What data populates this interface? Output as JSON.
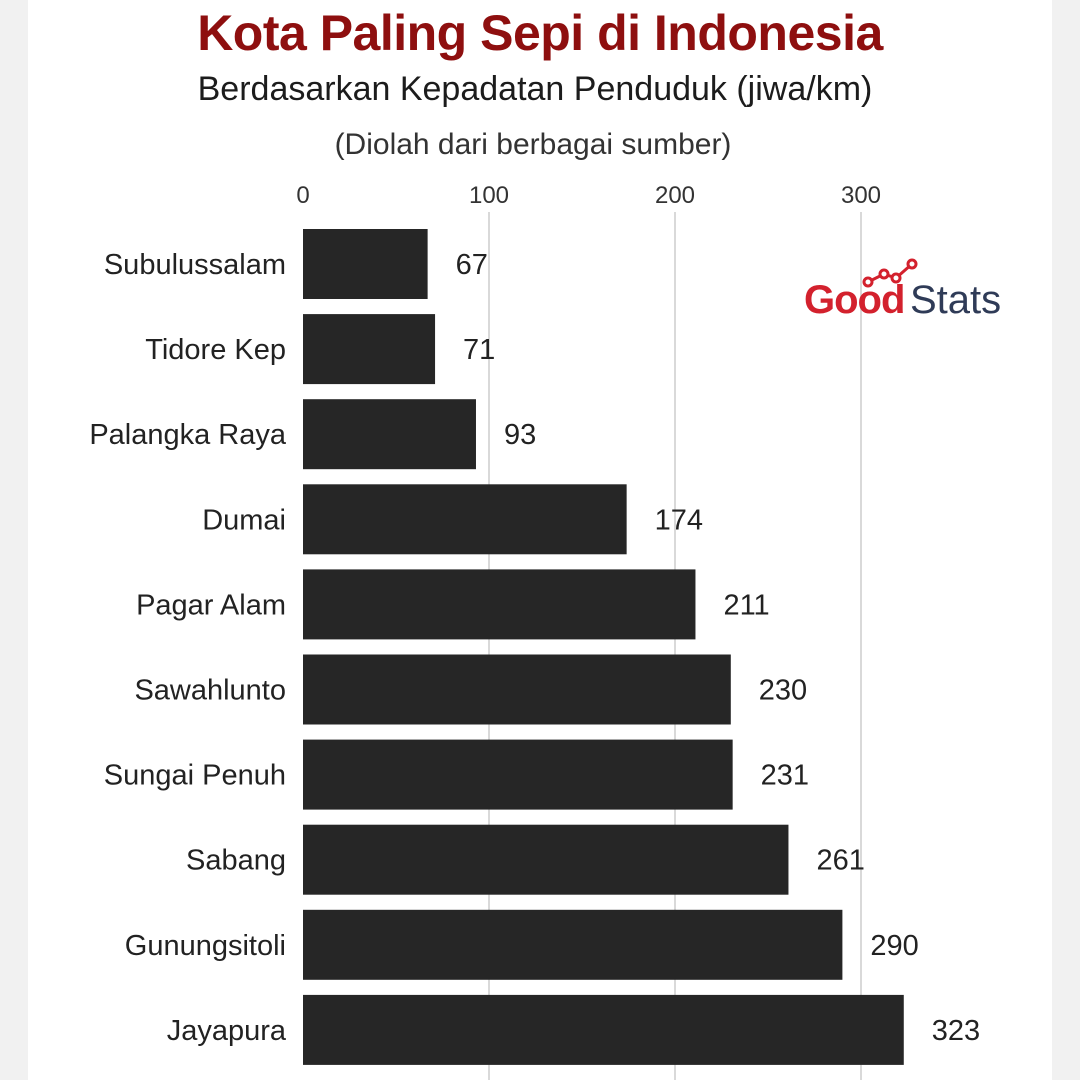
{
  "header": {
    "title": "Kota Paling Sepi di Indonesia",
    "subtitle": "Berdasarkan Kepadatan Penduduk (jiwa/km)",
    "source": "(Diolah dari berbagai sumber)"
  },
  "logo": {
    "part1": "Good",
    "part2": "Stats",
    "graph_icon": "rising-line-chart-icon"
  },
  "colors": {
    "bar": "#262626",
    "title": "#8e0f0f",
    "grid": "#d9d9d9",
    "logo_red": "#d3212d",
    "logo_navy": "#2f3b57"
  },
  "chart_data": {
    "type": "bar",
    "orientation": "horizontal",
    "categories": [
      "Subulussalam",
      "Tidore Kep",
      "Palangka Raya",
      "Dumai",
      "Pagar Alam",
      "Sawahlunto",
      "Sungai Penuh",
      "Sabang",
      "Gunungsitoli",
      "Jayapura"
    ],
    "values": [
      67,
      71,
      93,
      174,
      211,
      230,
      231,
      261,
      290,
      323
    ],
    "x_ticks": [
      0,
      100,
      200,
      300
    ],
    "xlim": [
      0,
      330
    ],
    "grid": true,
    "x_axis_position": "top",
    "data_labels": true
  }
}
